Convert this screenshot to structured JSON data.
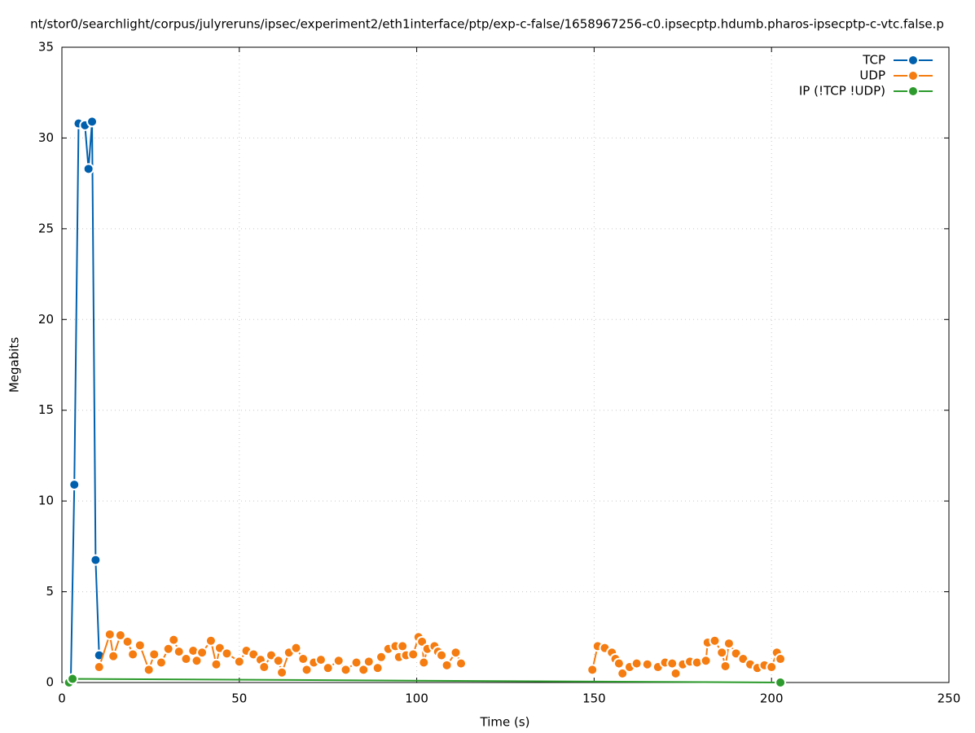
{
  "chart_data": {
    "type": "line",
    "title": "nt/stor0/searchlight/corpus/julyreruns/ipsec/experiment2/eth1interface/ptp/exp-c-false/1658967256-c0.ipsecptp.hdumb.pharos-ipsecptp-c-vtc.false.p",
    "x_label": "Time (s)",
    "y_label": "Megabits",
    "xlim": [
      0,
      250
    ],
    "xticks": [
      0,
      50,
      100,
      150,
      200,
      250
    ],
    "ylim": [
      0,
      35
    ],
    "yticks": [
      0,
      5,
      10,
      15,
      20,
      25,
      30,
      35
    ],
    "grid": true,
    "legend": "top-right",
    "series": [
      {
        "name": "TCP",
        "color": "#0060ad",
        "x": [
          2.5,
          3.5,
          4.7,
          6.5,
          7.5,
          8.5,
          9.5,
          10.5
        ],
        "values": [
          0,
          10.9,
          30.8,
          30.7,
          28.3,
          30.9,
          6.75,
          1.5
        ]
      },
      {
        "name": "UDP",
        "color": "#f57c10",
        "x": [
          10.5,
          13.5,
          14.5,
          16.5,
          18.5,
          20,
          22,
          24.5,
          26,
          28,
          30,
          31.5,
          33,
          35,
          37,
          38,
          39.5,
          42,
          43.5,
          44.5,
          46.5,
          50,
          52,
          54,
          56,
          57,
          59,
          61,
          62,
          64,
          66,
          68,
          69,
          71,
          73,
          75,
          78,
          80,
          83,
          85,
          86.5,
          89,
          90,
          92,
          94,
          95,
          96,
          97,
          99,
          100.5,
          101.5,
          102,
          103,
          105,
          106,
          107,
          108.5,
          111,
          112.5,
          130,
          149.5,
          151,
          153,
          155,
          156,
          157,
          158,
          160,
          162,
          165,
          168,
          170,
          172,
          173,
          175,
          177,
          179,
          181.5,
          182,
          184,
          186,
          187,
          188,
          190,
          192,
          194,
          196,
          198,
          200,
          201.5,
          202.5
        ],
        "values": [
          0.85,
          2.65,
          1.45,
          2.6,
          2.25,
          1.55,
          2.05,
          0.7,
          1.55,
          1.1,
          1.85,
          2.35,
          1.7,
          1.3,
          1.75,
          1.2,
          1.65,
          2.3,
          1.0,
          1.9,
          1.6,
          1.15,
          1.75,
          1.55,
          1.25,
          0.85,
          1.5,
          1.2,
          0.55,
          1.65,
          1.9,
          1.3,
          0.7,
          1.1,
          1.25,
          0.8,
          1.2,
          0.7,
          1.1,
          0.7,
          1.15,
          0.8,
          1.4,
          1.85,
          2.0,
          1.4,
          2.0,
          1.5,
          1.55,
          2.5,
          2.25,
          1.1,
          1.85,
          2.0,
          1.7,
          1.5,
          0.95,
          1.65,
          1.05,
          null,
          0.7,
          2.0,
          1.9,
          1.65,
          1.3,
          1.05,
          0.5,
          0.85,
          1.05,
          1.0,
          0.85,
          1.1,
          1.05,
          0.5,
          1.0,
          1.15,
          1.1,
          1.2,
          2.2,
          2.3,
          1.65,
          0.9,
          2.15,
          1.6,
          1.3,
          1.0,
          0.8,
          0.95,
          0.85,
          1.65,
          1.3
        ]
      },
      {
        "name": "IP (!TCP  !UDP)",
        "color": "#2c9a2c",
        "x": [
          2,
          3,
          202.5
        ],
        "values": [
          0,
          0.2,
          0
        ]
      }
    ]
  }
}
